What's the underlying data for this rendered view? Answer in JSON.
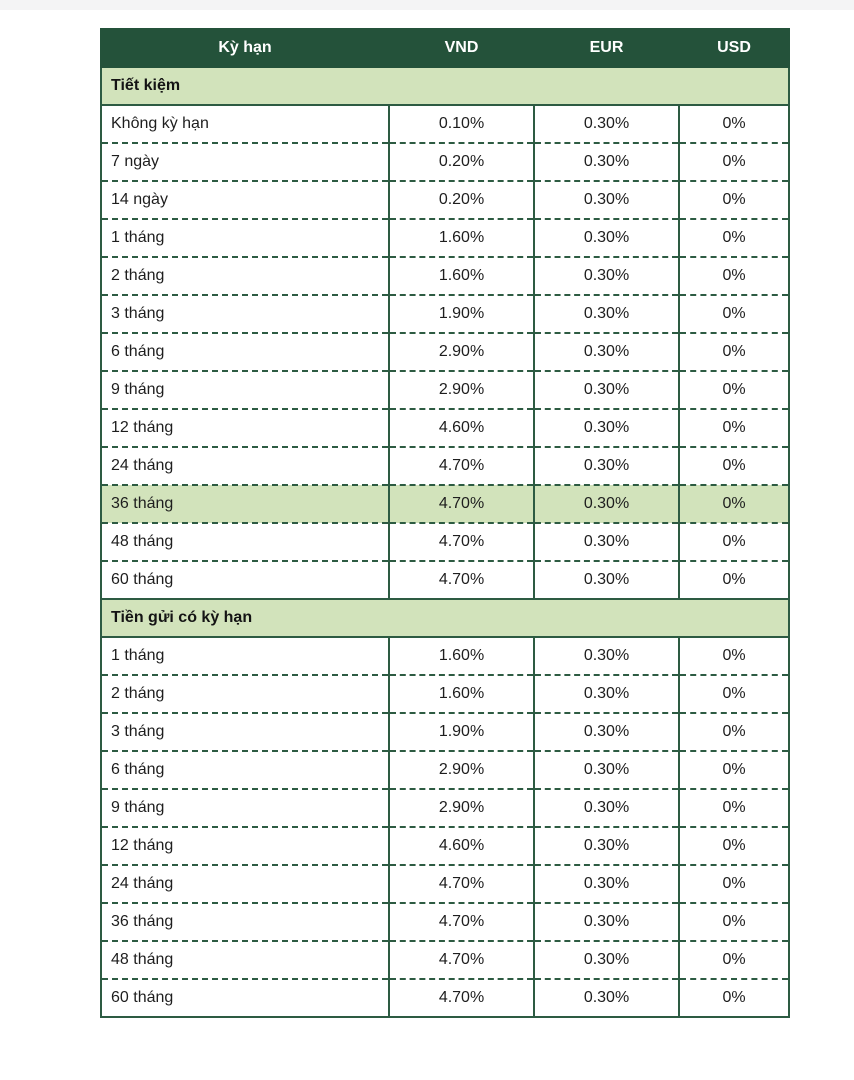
{
  "page": {
    "top_strip_color": "#f4f4f5",
    "header_bg_color": "#24523a",
    "section_bg_color": "#d2e3bb",
    "border_color": "#2d5b42",
    "highlight_bg_color": "#d2e3bb"
  },
  "table": {
    "columns": [
      "Kỳ hạn",
      "VND",
      "EUR",
      "USD"
    ],
    "sections": [
      {
        "title": "Tiết kiệm",
        "rows": [
          {
            "label": "Không kỳ hạn",
            "values": [
              "0.10%",
              "0.30%",
              "0%"
            ],
            "highlight": false
          },
          {
            "label": "7 ngày",
            "values": [
              "0.20%",
              "0.30%",
              "0%"
            ],
            "highlight": false
          },
          {
            "label": "14 ngày",
            "values": [
              "0.20%",
              "0.30%",
              "0%"
            ],
            "highlight": false
          },
          {
            "label": "1 tháng",
            "values": [
              "1.60%",
              "0.30%",
              "0%"
            ],
            "highlight": false
          },
          {
            "label": "2 tháng",
            "values": [
              "1.60%",
              "0.30%",
              "0%"
            ],
            "highlight": false
          },
          {
            "label": "3 tháng",
            "values": [
              "1.90%",
              "0.30%",
              "0%"
            ],
            "highlight": false
          },
          {
            "label": "6 tháng",
            "values": [
              "2.90%",
              "0.30%",
              "0%"
            ],
            "highlight": false
          },
          {
            "label": "9 tháng",
            "values": [
              "2.90%",
              "0.30%",
              "0%"
            ],
            "highlight": false
          },
          {
            "label": "12 tháng",
            "values": [
              "4.60%",
              "0.30%",
              "0%"
            ],
            "highlight": false
          },
          {
            "label": "24 tháng",
            "values": [
              "4.70%",
              "0.30%",
              "0%"
            ],
            "highlight": false
          },
          {
            "label": "36 tháng",
            "values": [
              "4.70%",
              "0.30%",
              "0%"
            ],
            "highlight": true
          },
          {
            "label": "48 tháng",
            "values": [
              "4.70%",
              "0.30%",
              "0%"
            ],
            "highlight": false
          },
          {
            "label": "60 tháng",
            "values": [
              "4.70%",
              "0.30%",
              "0%"
            ],
            "highlight": false
          }
        ]
      },
      {
        "title": "Tiền gửi có kỳ hạn",
        "rows": [
          {
            "label": "1 tháng",
            "values": [
              "1.60%",
              "0.30%",
              "0%"
            ],
            "highlight": false
          },
          {
            "label": "2 tháng",
            "values": [
              "1.60%",
              "0.30%",
              "0%"
            ],
            "highlight": false
          },
          {
            "label": "3 tháng",
            "values": [
              "1.90%",
              "0.30%",
              "0%"
            ],
            "highlight": false
          },
          {
            "label": "6 tháng",
            "values": [
              "2.90%",
              "0.30%",
              "0%"
            ],
            "highlight": false
          },
          {
            "label": "9 tháng",
            "values": [
              "2.90%",
              "0.30%",
              "0%"
            ],
            "highlight": false
          },
          {
            "label": "12 tháng",
            "values": [
              "4.60%",
              "0.30%",
              "0%"
            ],
            "highlight": false
          },
          {
            "label": "24 tháng",
            "values": [
              "4.70%",
              "0.30%",
              "0%"
            ],
            "highlight": false
          },
          {
            "label": "36 tháng",
            "values": [
              "4.70%",
              "0.30%",
              "0%"
            ],
            "highlight": false
          },
          {
            "label": "48 tháng",
            "values": [
              "4.70%",
              "0.30%",
              "0%"
            ],
            "highlight": false
          },
          {
            "label": "60 tháng",
            "values": [
              "4.70%",
              "0.30%",
              "0%"
            ],
            "highlight": false
          }
        ]
      }
    ]
  }
}
